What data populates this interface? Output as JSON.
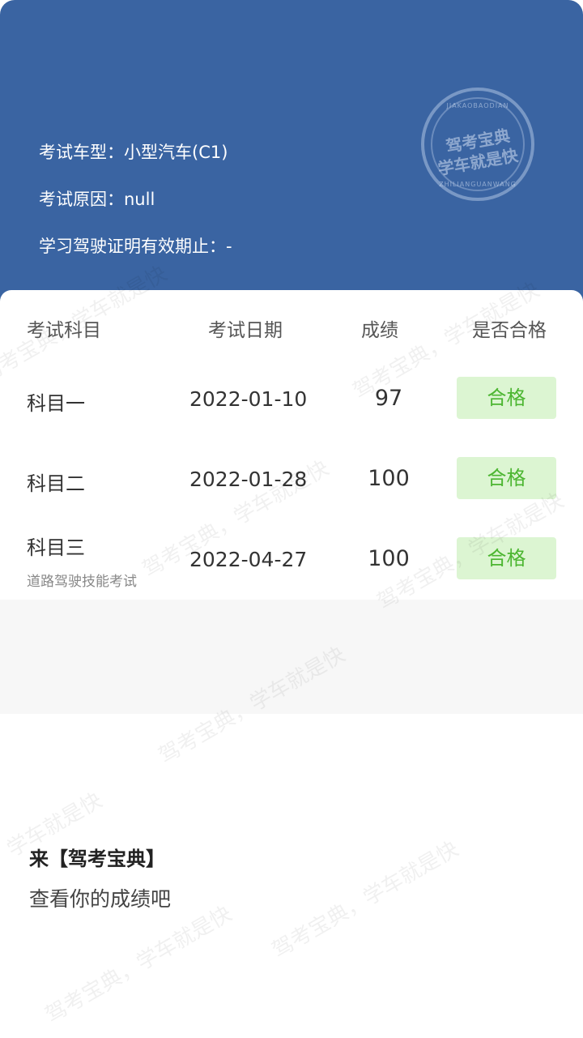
{
  "header": {
    "vehicle_type": "考试车型：小型汽车(C1)",
    "exam_reason": "考试原因：null",
    "permit_validity": "学习驾驶证明有效期止：-",
    "stamp": {
      "top_text": "JIAKAOBAODIAN",
      "line1": "驾考宝典",
      "line2": "学车就是快",
      "bottom_text": "ZHILIANGUANWANG"
    }
  },
  "table": {
    "headers": [
      "考试科目",
      "考试日期",
      "成绩",
      "是否合格"
    ],
    "rows": [
      {
        "subject": "科目一",
        "subtitle": "",
        "date": "2022-01-10",
        "score": "97",
        "result": "合格"
      },
      {
        "subject": "科目二",
        "subtitle": "",
        "date": "2022-01-28",
        "score": "100",
        "result": "合格"
      },
      {
        "subject": "科目三",
        "subtitle": "道路驾驶技能考试",
        "date": "2022-04-27",
        "score": "100",
        "result": "合格"
      }
    ]
  },
  "watermark": "驾考宝典，学车就是快",
  "cta": {
    "line1": "来【驾考宝典】",
    "line2": "查看你的成绩吧"
  },
  "colors": {
    "header_bg": "#3a64a2",
    "pass_bg": "#dcf5d2",
    "pass_text": "#4cb631"
  }
}
